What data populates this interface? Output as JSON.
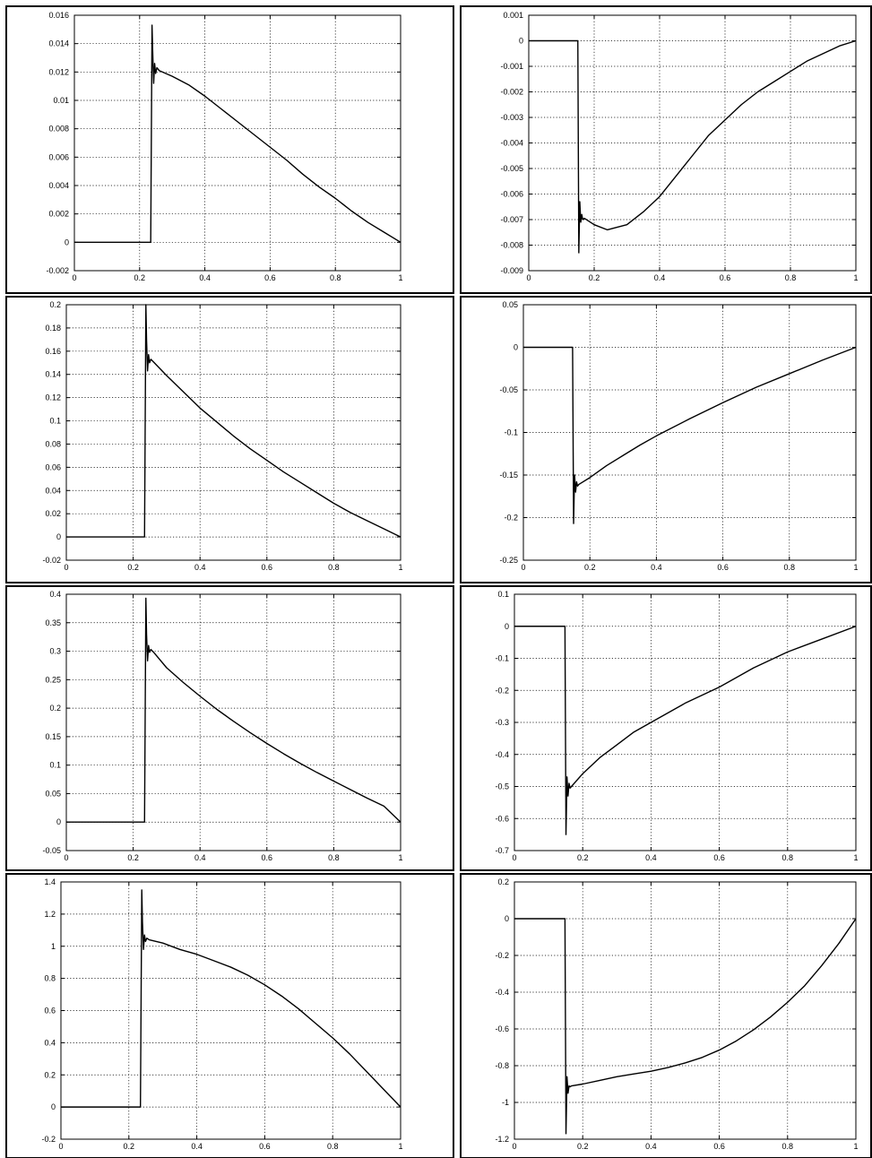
{
  "chart_data": [
    {
      "type": "line",
      "row": 1,
      "column": "left",
      "xlim": [
        0,
        1
      ],
      "ylim": [
        -0.002,
        0.016
      ],
      "grid": true,
      "legend": false,
      "xticks": [
        "0",
        "0.2",
        "0.4",
        "0.6",
        "0.8",
        "1"
      ],
      "yticks": [
        "-0.002",
        "0",
        "0.002",
        "0.004",
        "0.006",
        "0.008",
        "0.01",
        "0.012",
        "0.014",
        "0.016"
      ],
      "series": [
        {
          "x": [
            0,
            0.234,
            0.238,
            0.24,
            0.243,
            0.246,
            0.249,
            0.253,
            0.26,
            0.3,
            0.35,
            0.4,
            0.45,
            0.5,
            0.55,
            0.6,
            0.65,
            0.7,
            0.75,
            0.8,
            0.85,
            0.9,
            0.95,
            1.0
          ],
          "y": [
            0,
            0,
            0.0153,
            0.0135,
            0.0112,
            0.0126,
            0.0119,
            0.0123,
            0.0121,
            0.0117,
            0.0111,
            0.0103,
            0.0094,
            0.0085,
            0.0076,
            0.0067,
            0.0058,
            0.0048,
            0.0039,
            0.0031,
            0.0022,
            0.0014,
            0.0007,
            0
          ]
        }
      ]
    },
    {
      "type": "line",
      "row": 1,
      "column": "right",
      "xlim": [
        0,
        1
      ],
      "ylim": [
        -0.009,
        0.001
      ],
      "grid": true,
      "legend": false,
      "xticks": [
        "0",
        "0.2",
        "0.4",
        "0.6",
        "0.8",
        "1"
      ],
      "yticks": [
        "-0.009",
        "-0.008",
        "-0.007",
        "-0.006",
        "-0.005",
        "-0.004",
        "-0.003",
        "-0.002",
        "-0.001",
        "0",
        "0.001"
      ],
      "series": [
        {
          "x": [
            0,
            0.15,
            0.153,
            0.156,
            0.159,
            0.162,
            0.165,
            0.17,
            0.2,
            0.24,
            0.3,
            0.35,
            0.4,
            0.45,
            0.5,
            0.55,
            0.6,
            0.65,
            0.7,
            0.75,
            0.8,
            0.85,
            0.9,
            0.95,
            1.0
          ],
          "y": [
            0,
            0,
            -0.0083,
            -0.0063,
            -0.0071,
            -0.0068,
            -0.007,
            -0.00695,
            -0.0072,
            -0.0074,
            -0.0072,
            -0.0067,
            -0.0061,
            -0.0053,
            -0.0045,
            -0.0037,
            -0.0031,
            -0.0025,
            -0.002,
            -0.0016,
            -0.0012,
            -0.0008,
            -0.0005,
            -0.0002,
            0
          ]
        }
      ]
    },
    {
      "type": "line",
      "row": 2,
      "column": "left",
      "xlim": [
        0,
        1
      ],
      "ylim": [
        -0.02,
        0.2
      ],
      "grid": true,
      "legend": false,
      "xticks": [
        "0",
        "0.2",
        "0.4",
        "0.6",
        "0.8",
        "1"
      ],
      "yticks": [
        "-0.02",
        "0",
        "0.02",
        "0.04",
        "0.06",
        "0.08",
        "0.1",
        "0.12",
        "0.14",
        "0.16",
        "0.18",
        "0.2"
      ],
      "series": [
        {
          "x": [
            0,
            0.234,
            0.238,
            0.24,
            0.243,
            0.246,
            0.249,
            0.253,
            0.26,
            0.3,
            0.35,
            0.4,
            0.45,
            0.5,
            0.55,
            0.6,
            0.65,
            0.7,
            0.75,
            0.8,
            0.85,
            0.9,
            0.95,
            1.0
          ],
          "y": [
            0,
            0,
            0.2,
            0.17,
            0.143,
            0.157,
            0.15,
            0.153,
            0.151,
            0.139,
            0.125,
            0.111,
            0.099,
            0.087,
            0.076,
            0.066,
            0.056,
            0.047,
            0.038,
            0.029,
            0.021,
            0.014,
            0.007,
            0
          ]
        }
      ]
    },
    {
      "type": "line",
      "row": 2,
      "column": "right",
      "xlim": [
        0,
        1
      ],
      "ylim": [
        -0.25,
        0.05
      ],
      "grid": true,
      "legend": false,
      "xticks": [
        "0",
        "0.2",
        "0.4",
        "0.6",
        "0.8",
        "1"
      ],
      "yticks": [
        "-0.25",
        "-0.2",
        "-0.15",
        "-0.1",
        "-0.05",
        "0",
        "0.05"
      ],
      "series": [
        {
          "x": [
            0,
            0.148,
            0.151,
            0.154,
            0.157,
            0.16,
            0.163,
            0.167,
            0.2,
            0.25,
            0.3,
            0.35,
            0.4,
            0.5,
            0.6,
            0.7,
            0.8,
            0.9,
            1.0
          ],
          "y": [
            0,
            0,
            -0.207,
            -0.15,
            -0.17,
            -0.158,
            -0.163,
            -0.161,
            -0.153,
            -0.139,
            -0.127,
            -0.115,
            -0.104,
            -0.084,
            -0.065,
            -0.047,
            -0.031,
            -0.015,
            0
          ]
        }
      ]
    },
    {
      "type": "line",
      "row": 3,
      "column": "left",
      "xlim": [
        0,
        1
      ],
      "ylim": [
        -0.05,
        0.4
      ],
      "grid": true,
      "legend": false,
      "xticks": [
        "0",
        "0.2",
        "0.4",
        "0.6",
        "0.8",
        "1"
      ],
      "yticks": [
        "-0.05",
        "0",
        "0.05",
        "0.1",
        "0.15",
        "0.2",
        "0.25",
        "0.3",
        "0.35",
        "0.4"
      ],
      "series": [
        {
          "x": [
            0,
            0.234,
            0.238,
            0.24,
            0.243,
            0.246,
            0.249,
            0.253,
            0.26,
            0.3,
            0.35,
            0.4,
            0.45,
            0.5,
            0.55,
            0.6,
            0.65,
            0.7,
            0.75,
            0.8,
            0.85,
            0.9,
            0.95,
            1.0
          ],
          "y": [
            0,
            0,
            0.393,
            0.33,
            0.283,
            0.31,
            0.298,
            0.303,
            0.299,
            0.271,
            0.245,
            0.221,
            0.198,
            0.177,
            0.157,
            0.138,
            0.12,
            0.103,
            0.087,
            0.072,
            0.057,
            0.042,
            0.028,
            0
          ]
        }
      ]
    },
    {
      "type": "line",
      "row": 3,
      "column": "right",
      "xlim": [
        0,
        1
      ],
      "ylim": [
        -0.7,
        0.1
      ],
      "grid": true,
      "legend": false,
      "xticks": [
        "0",
        "0.2",
        "0.4",
        "0.6",
        "0.8",
        "1"
      ],
      "yticks": [
        "-0.7",
        "-0.6",
        "-0.5",
        "-0.4",
        "-0.3",
        "-0.2",
        "-0.1",
        "0",
        "0.1"
      ],
      "series": [
        {
          "x": [
            0,
            0.148,
            0.151,
            0.154,
            0.157,
            0.16,
            0.163,
            0.167,
            0.2,
            0.25,
            0.3,
            0.35,
            0.4,
            0.5,
            0.6,
            0.7,
            0.8,
            0.9,
            1.0
          ],
          "y": [
            0,
            0,
            -0.65,
            -0.47,
            -0.53,
            -0.49,
            -0.505,
            -0.5,
            -0.46,
            -0.41,
            -0.37,
            -0.33,
            -0.3,
            -0.24,
            -0.19,
            -0.13,
            -0.08,
            -0.04,
            0
          ]
        }
      ]
    },
    {
      "type": "line",
      "row": 4,
      "column": "left",
      "xlim": [
        0,
        1
      ],
      "ylim": [
        -0.2,
        1.4
      ],
      "grid": true,
      "legend": false,
      "xticks": [
        "0",
        "0.2",
        "0.4",
        "0.6",
        "0.8",
        "1"
      ],
      "yticks": [
        "-0.2",
        "0",
        "0.2",
        "0.4",
        "0.6",
        "0.8",
        "1",
        "1.2",
        "1.4"
      ],
      "series": [
        {
          "x": [
            0,
            0.234,
            0.238,
            0.24,
            0.243,
            0.246,
            0.249,
            0.253,
            0.26,
            0.3,
            0.35,
            0.4,
            0.45,
            0.5,
            0.55,
            0.6,
            0.65,
            0.7,
            0.75,
            0.8,
            0.85,
            0.9,
            0.95,
            1.0
          ],
          "y": [
            0,
            0,
            1.35,
            1.15,
            0.98,
            1.07,
            1.03,
            1.05,
            1.04,
            1.02,
            0.98,
            0.95,
            0.91,
            0.87,
            0.82,
            0.76,
            0.69,
            0.61,
            0.52,
            0.43,
            0.33,
            0.22,
            0.11,
            0
          ]
        }
      ]
    },
    {
      "type": "line",
      "row": 4,
      "column": "right",
      "xlim": [
        0,
        1
      ],
      "ylim": [
        -1.2,
        0.2
      ],
      "grid": true,
      "legend": false,
      "xticks": [
        "0",
        "0.2",
        "0.4",
        "0.6",
        "0.8",
        "1"
      ],
      "yticks": [
        "-1.2",
        "-1",
        "-0.8",
        "-0.6",
        "-0.4",
        "-0.2",
        "0",
        "0.2"
      ],
      "series": [
        {
          "x": [
            0,
            0.148,
            0.151,
            0.154,
            0.157,
            0.16,
            0.163,
            0.167,
            0.2,
            0.25,
            0.3,
            0.35,
            0.4,
            0.45,
            0.5,
            0.55,
            0.6,
            0.65,
            0.7,
            0.75,
            0.8,
            0.85,
            0.9,
            0.95,
            1.0
          ],
          "y": [
            0,
            0,
            -1.17,
            -0.86,
            -0.95,
            -0.91,
            -0.915,
            -0.91,
            -0.9,
            -0.88,
            -0.86,
            -0.845,
            -0.83,
            -0.81,
            -0.785,
            -0.755,
            -0.715,
            -0.665,
            -0.605,
            -0.535,
            -0.455,
            -0.365,
            -0.255,
            -0.135,
            0
          ]
        }
      ]
    }
  ]
}
